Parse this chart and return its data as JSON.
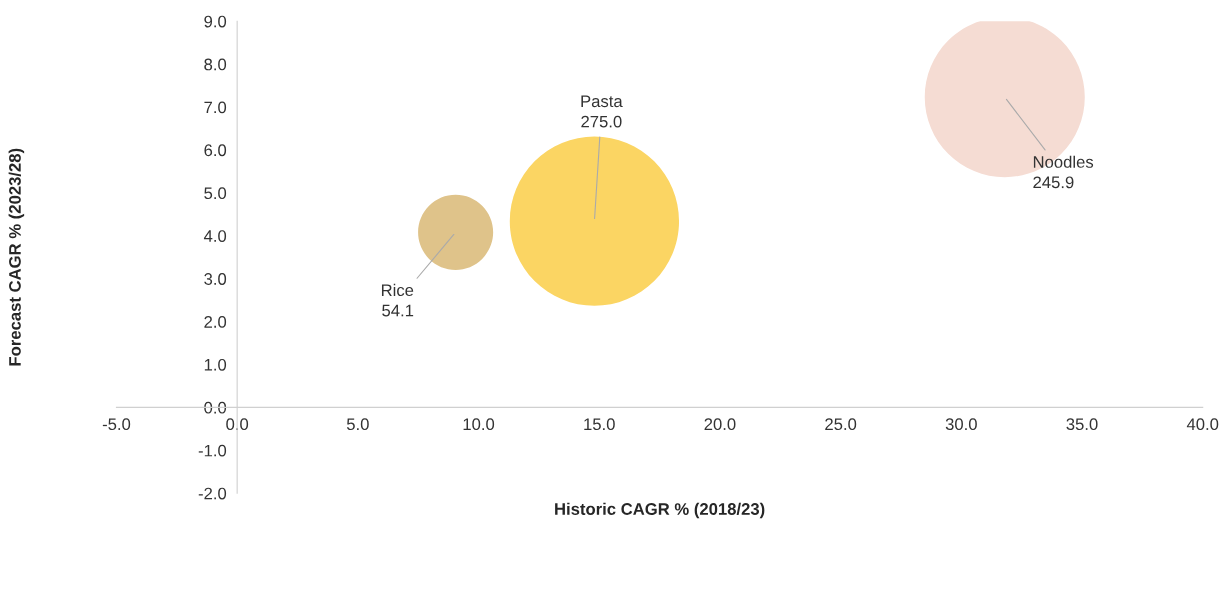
{
  "chart_data": {
    "type": "bubble",
    "xlabel": "Historic CAGR % (2018/23)",
    "ylabel": "Forecast CAGR % (2023/28)",
    "xlim": [
      -5,
      40
    ],
    "ylim": [
      -2,
      9
    ],
    "xticks": [
      {
        "value": -5,
        "label": "-5.0"
      },
      {
        "value": 0,
        "label": "0.0"
      },
      {
        "value": 5,
        "label": "5.0"
      },
      {
        "value": 10,
        "label": "10.0"
      },
      {
        "value": 15,
        "label": "15.0"
      },
      {
        "value": 20,
        "label": "20.0"
      },
      {
        "value": 25,
        "label": "25.0"
      },
      {
        "value": 30,
        "label": "30.0"
      },
      {
        "value": 35,
        "label": "35.0"
      },
      {
        "value": 40,
        "label": "40.0"
      }
    ],
    "yticks": [
      {
        "value": -2,
        "label": "-2.0"
      },
      {
        "value": -1,
        "label": "-1.0"
      },
      {
        "value": 0,
        "label": "0.0"
      },
      {
        "value": 1,
        "label": "1.0"
      },
      {
        "value": 2,
        "label": "2.0"
      },
      {
        "value": 3,
        "label": "3.0"
      },
      {
        "value": 4,
        "label": "4.0"
      },
      {
        "value": 5,
        "label": "5.0"
      },
      {
        "value": 6,
        "label": "6.0"
      },
      {
        "value": 7,
        "label": "7.0"
      },
      {
        "value": 8,
        "label": "8.0"
      },
      {
        "value": 9,
        "label": "9.0"
      }
    ],
    "grid": false,
    "legend": false,
    "series": [
      {
        "name": "Rice",
        "color": "#dfc38a",
        "x": [
          9.05
        ],
        "values": [
          4.08
        ],
        "sizes": [
          54.1
        ],
        "value_labels": [
          "54.1"
        ]
      },
      {
        "name": "Pasta",
        "color": "#fbd563",
        "x": [
          14.8
        ],
        "values": [
          4.34
        ],
        "sizes": [
          275.0
        ],
        "value_labels": [
          "275.0"
        ]
      },
      {
        "name": "Noodles",
        "color": "#f5dcd3",
        "x": [
          31.8
        ],
        "values": [
          7.23
        ],
        "sizes": [
          245.9
        ],
        "value_labels": [
          "245.9"
        ]
      }
    ]
  }
}
